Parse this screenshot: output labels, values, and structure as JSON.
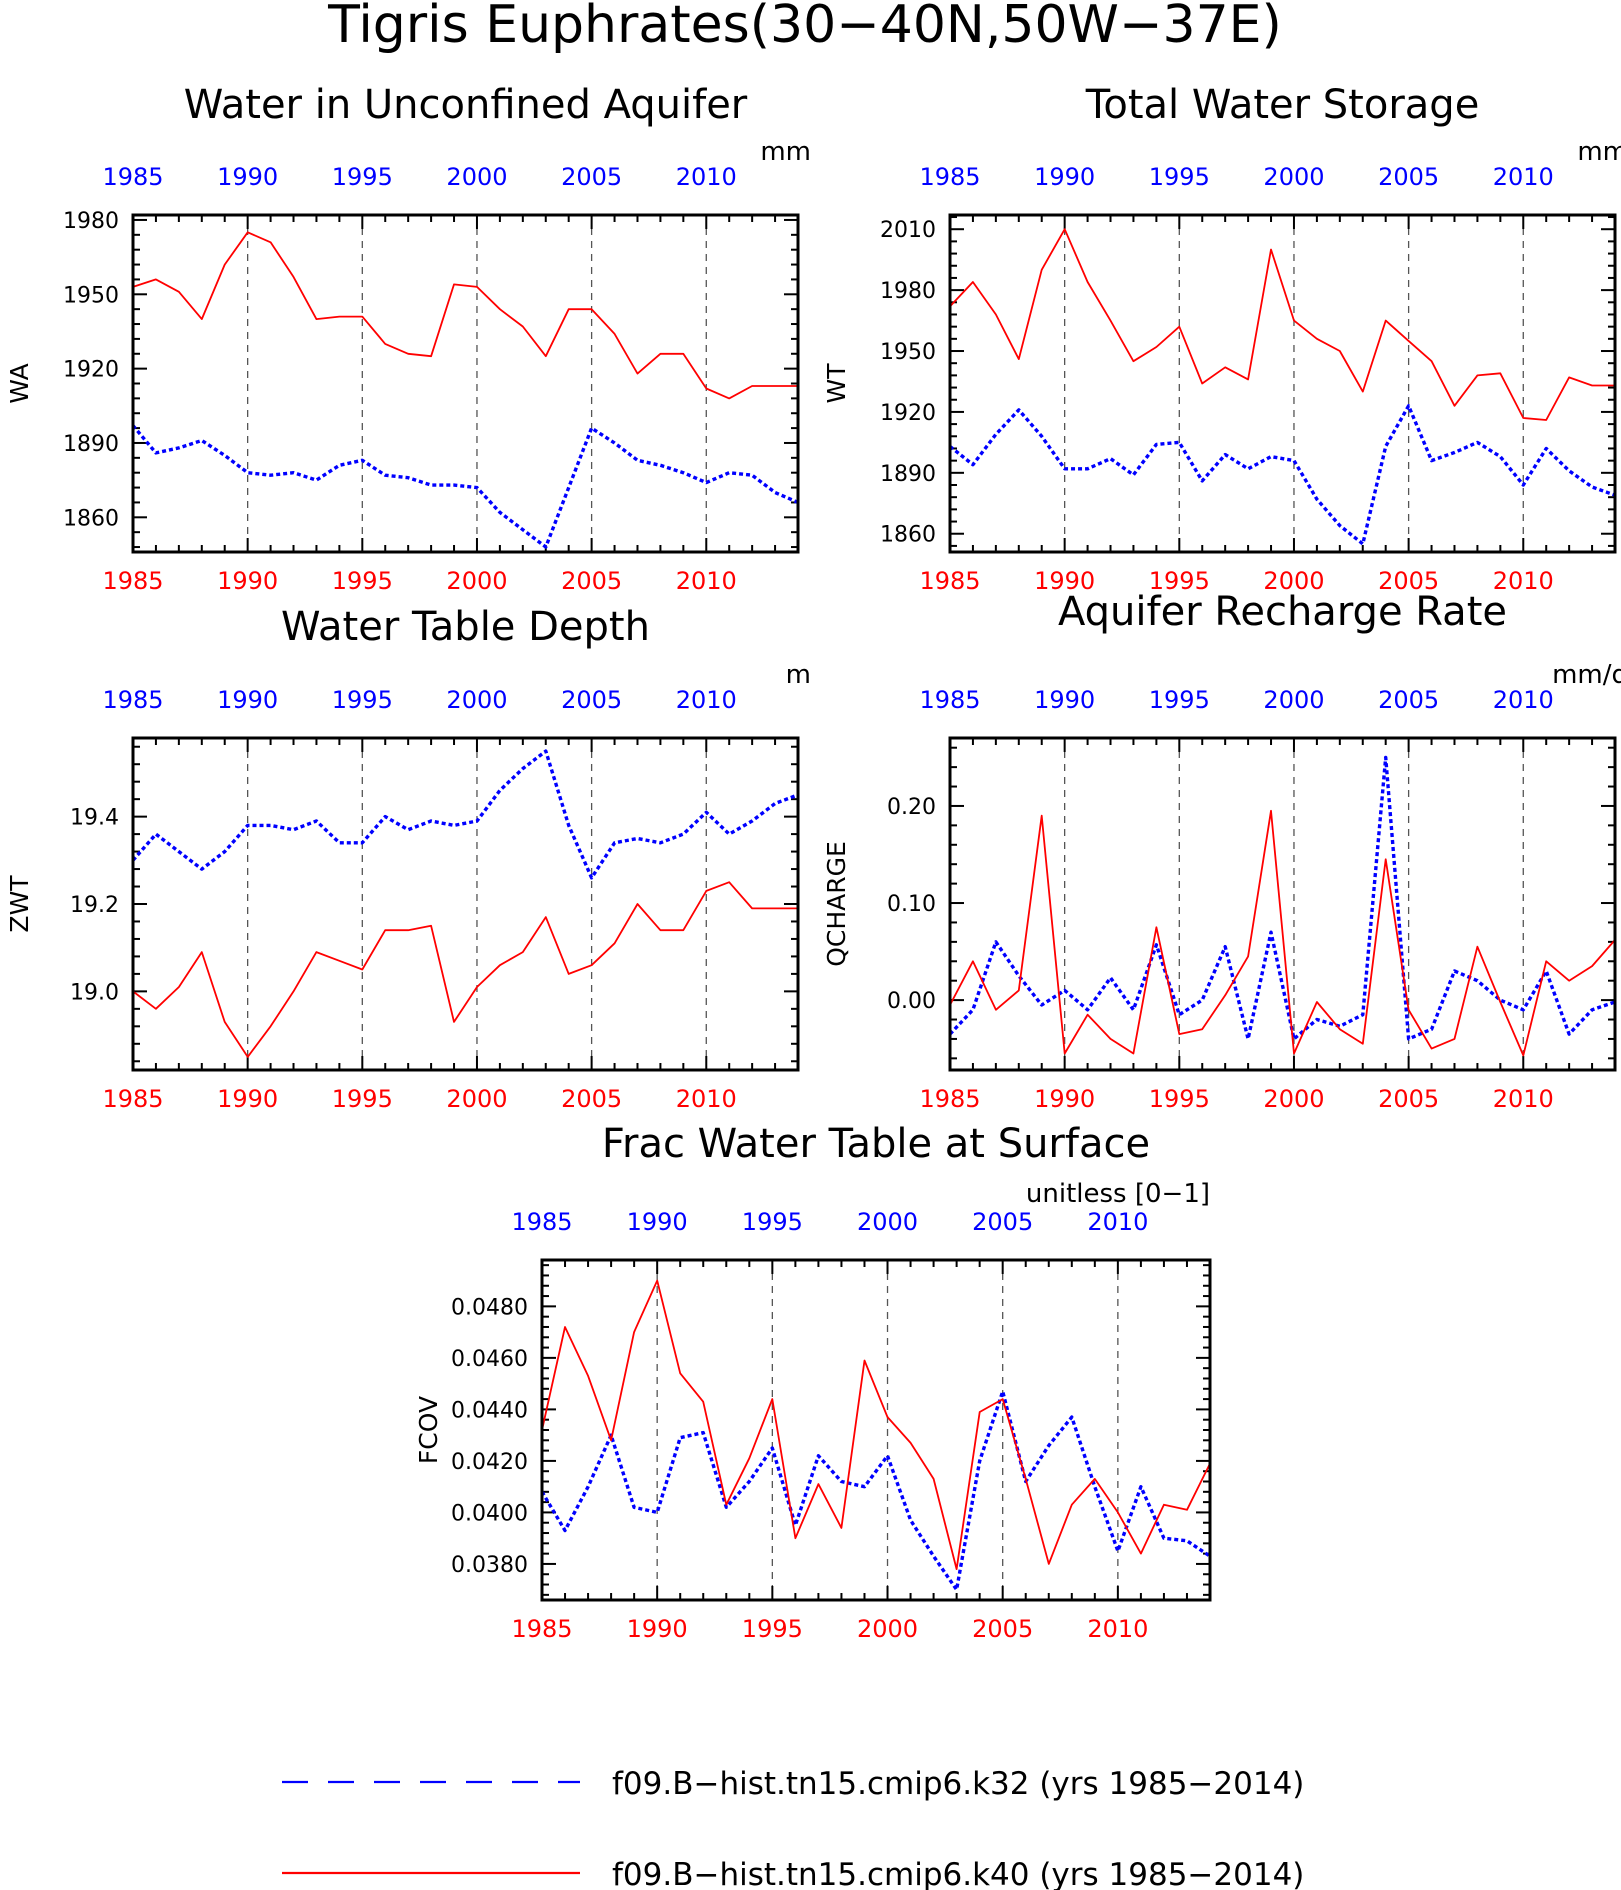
{
  "figure": {
    "title": "Tigris Euphrates(30−40N,50W−37E)"
  },
  "colors": {
    "k32": "#0000ff",
    "k40": "#ff0000",
    "axis": "#000000",
    "grid": "#555555"
  },
  "legend": {
    "placement": "bottom-center",
    "items": [
      {
        "label": "f09.B−hist.tn15.cmip6.k32 (yrs 1985−2014)",
        "color": "#0000ff",
        "style": "dashed"
      },
      {
        "label": "f09.B−hist.tn15.cmip6.k40 (yrs 1985−2014)",
        "color": "#ff0000",
        "style": "solid"
      }
    ]
  },
  "chart_data": [
    {
      "type": "line",
      "title": "Water in Unconfined Aquifer",
      "ylabel": "WA",
      "units": "mm",
      "xlim": [
        1985,
        2014
      ],
      "ylim": [
        1846,
        1982
      ],
      "yticks": [
        1860,
        1890,
        1920,
        1950,
        1980
      ],
      "ytick_labels": [
        "1860",
        "1890",
        "1920",
        "1950",
        "1980"
      ],
      "xticks": [
        1985,
        1990,
        1995,
        2000,
        2005,
        2010
      ],
      "xtick_labels": [
        "1985",
        "1990",
        "1995",
        "2000",
        "2005",
        "2010"
      ],
      "grid_x": true,
      "series": [
        {
          "name": "f09.B−hist.tn15.cmip6.k32 (yrs 1985−2014)",
          "color": "#0000ff",
          "style": "dashed",
          "x": [
            1985,
            1986,
            1987,
            1988,
            1989,
            1990,
            1991,
            1992,
            1993,
            1994,
            1995,
            1996,
            1997,
            1998,
            1999,
            2000,
            2001,
            2002,
            2003,
            2004,
            2005,
            2006,
            2007,
            2008,
            2009,
            2010,
            2011,
            2012,
            2013,
            2014
          ],
          "values": [
            1897,
            1886,
            1888,
            1891,
            1885,
            1878,
            1877,
            1878,
            1875,
            1881,
            1883,
            1877,
            1876,
            1873,
            1873,
            1872,
            1862,
            1855,
            1848,
            1872,
            1896,
            1890,
            1883,
            1881,
            1878,
            1874,
            1878,
            1877,
            1870,
            1866
          ]
        },
        {
          "name": "f09.B−hist.tn15.cmip6.k40 (yrs 1985−2014)",
          "color": "#ff0000",
          "style": "solid",
          "x": [
            1985,
            1986,
            1987,
            1988,
            1989,
            1990,
            1991,
            1992,
            1993,
            1994,
            1995,
            1996,
            1997,
            1998,
            1999,
            2000,
            2001,
            2002,
            2003,
            2004,
            2005,
            2006,
            2007,
            2008,
            2009,
            2010,
            2011,
            2012,
            2013,
            2014
          ],
          "values": [
            1953,
            1956,
            1951,
            1940,
            1962,
            1975,
            1971,
            1957,
            1940,
            1941,
            1941,
            1930,
            1926,
            1925,
            1954,
            1953,
            1944,
            1937,
            1925,
            1944,
            1944,
            1934,
            1918,
            1926,
            1926,
            1912,
            1908,
            1913,
            1913,
            1913
          ]
        }
      ]
    },
    {
      "type": "line",
      "title": "Total Water Storage",
      "ylabel": "WT",
      "units": "mm",
      "xlim": [
        1985,
        2014
      ],
      "ylim": [
        1851,
        2017
      ],
      "yticks": [
        1860,
        1890,
        1920,
        1950,
        1980,
        2010
      ],
      "ytick_labels": [
        "1860",
        "1890",
        "1920",
        "1950",
        "1980",
        "2010"
      ],
      "xticks": [
        1985,
        1990,
        1995,
        2000,
        2005,
        2010
      ],
      "xtick_labels": [
        "1985",
        "1990",
        "1995",
        "2000",
        "2005",
        "2010"
      ],
      "grid_x": true,
      "series": [
        {
          "name": "f09.B−hist.tn15.cmip6.k32 (yrs 1985−2014)",
          "color": "#0000ff",
          "style": "dashed",
          "x": [
            1985,
            1986,
            1987,
            1988,
            1989,
            1990,
            1991,
            1992,
            1993,
            1994,
            1995,
            1996,
            1997,
            1998,
            1999,
            2000,
            2001,
            2002,
            2003,
            2004,
            2005,
            2006,
            2007,
            2008,
            2009,
            2010,
            2011,
            2012,
            2013,
            2014
          ],
          "values": [
            1903,
            1894,
            1909,
            1921,
            1908,
            1892,
            1892,
            1897,
            1889,
            1904,
            1905,
            1886,
            1899,
            1892,
            1898,
            1896,
            1877,
            1864,
            1855,
            1903,
            1923,
            1896,
            1900,
            1905,
            1898,
            1884,
            1902,
            1891,
            1883,
            1879
          ]
        },
        {
          "name": "f09.B−hist.tn15.cmip6.k40 (yrs 1985−2014)",
          "color": "#ff0000",
          "style": "solid",
          "x": [
            1985,
            1986,
            1987,
            1988,
            1989,
            1990,
            1991,
            1992,
            1993,
            1994,
            1995,
            1996,
            1997,
            1998,
            1999,
            2000,
            2001,
            2002,
            2003,
            2004,
            2005,
            2006,
            2007,
            2008,
            2009,
            2010,
            2011,
            2012,
            2013,
            2014
          ],
          "values": [
            1972,
            1984,
            1968,
            1946,
            1990,
            2010,
            1984,
            1965,
            1945,
            1952,
            1962,
            1934,
            1942,
            1936,
            2000,
            1965,
            1956,
            1950,
            1930,
            1965,
            1955,
            1945,
            1923,
            1938,
            1939,
            1917,
            1916,
            1937,
            1933,
            1933
          ]
        }
      ]
    },
    {
      "type": "line",
      "title": "Water Table Depth",
      "ylabel": "ZWT",
      "units": "m",
      "xlim": [
        1985,
        2014
      ],
      "ylim": [
        18.82,
        19.58
      ],
      "yticks": [
        19.0,
        19.2,
        19.4
      ],
      "ytick_labels": [
        "19.0",
        "19.2",
        "19.4"
      ],
      "xticks": [
        1985,
        1990,
        1995,
        2000,
        2005,
        2010
      ],
      "xtick_labels": [
        "1985",
        "1990",
        "1995",
        "2000",
        "2005",
        "2010"
      ],
      "grid_x": true,
      "series": [
        {
          "name": "f09.B−hist.tn15.cmip6.k32 (yrs 1985−2014)",
          "color": "#0000ff",
          "style": "dashed",
          "x": [
            1985,
            1986,
            1987,
            1988,
            1989,
            1990,
            1991,
            1992,
            1993,
            1994,
            1995,
            1996,
            1997,
            1998,
            1999,
            2000,
            2001,
            2002,
            2003,
            2004,
            2005,
            2006,
            2007,
            2008,
            2009,
            2010,
            2011,
            2012,
            2013,
            2014
          ],
          "values": [
            19.3,
            19.36,
            19.32,
            19.28,
            19.32,
            19.38,
            19.38,
            19.37,
            19.39,
            19.34,
            19.34,
            19.4,
            19.37,
            19.39,
            19.38,
            19.39,
            19.46,
            19.51,
            19.55,
            19.38,
            19.26,
            19.34,
            19.35,
            19.34,
            19.36,
            19.41,
            19.36,
            19.39,
            19.43,
            19.45
          ]
        },
        {
          "name": "f09.B−hist.tn15.cmip6.k40 (yrs 1985−2014)",
          "color": "#ff0000",
          "style": "solid",
          "x": [
            1985,
            1986,
            1987,
            1988,
            1989,
            1990,
            1991,
            1992,
            1993,
            1994,
            1995,
            1996,
            1997,
            1998,
            1999,
            2000,
            2001,
            2002,
            2003,
            2004,
            2005,
            2006,
            2007,
            2008,
            2009,
            2010,
            2011,
            2012,
            2013,
            2014
          ],
          "values": [
            19.0,
            18.96,
            19.01,
            19.09,
            18.93,
            18.85,
            18.92,
            19.0,
            19.09,
            19.07,
            19.05,
            19.14,
            19.14,
            19.15,
            18.93,
            19.01,
            19.06,
            19.09,
            19.17,
            19.04,
            19.06,
            19.11,
            19.2,
            19.14,
            19.14,
            19.23,
            19.25,
            19.19,
            19.19,
            19.19
          ]
        }
      ]
    },
    {
      "type": "line",
      "title": "Aquifer Recharge Rate",
      "ylabel": "QCHARGE",
      "units": "mm/d",
      "xlim": [
        1985,
        2014
      ],
      "ylim": [
        -0.072,
        0.27
      ],
      "yticks": [
        0.0,
        0.1,
        0.2
      ],
      "ytick_labels": [
        "0.00",
        "0.10",
        "0.20"
      ],
      "xticks": [
        1985,
        1990,
        1995,
        2000,
        2005,
        2010
      ],
      "xtick_labels": [
        "1985",
        "1990",
        "1995",
        "2000",
        "2005",
        "2010"
      ],
      "grid_x": true,
      "series": [
        {
          "name": "f09.B−hist.tn15.cmip6.k32 (yrs 1985−2014)",
          "color": "#0000ff",
          "style": "dashed",
          "x": [
            1985,
            1986,
            1987,
            1988,
            1989,
            1990,
            1991,
            1992,
            1993,
            1994,
            1995,
            1996,
            1997,
            1998,
            1999,
            2000,
            2001,
            2002,
            2003,
            2004,
            2005,
            2006,
            2007,
            2008,
            2009,
            2010,
            2011,
            2012,
            2013,
            2014
          ],
          "values": [
            -0.035,
            -0.01,
            0.06,
            0.025,
            -0.005,
            0.01,
            -0.01,
            0.023,
            -0.01,
            0.057,
            -0.015,
            0.0,
            0.055,
            -0.04,
            0.07,
            -0.04,
            -0.02,
            -0.027,
            -0.015,
            0.25,
            -0.04,
            -0.03,
            0.03,
            0.02,
            0.0,
            -0.01,
            0.03,
            -0.035,
            -0.01,
            -0.002
          ]
        },
        {
          "name": "f09.B−hist.tn15.cmip6.k40 (yrs 1985−2014)",
          "color": "#ff0000",
          "style": "solid",
          "x": [
            1985,
            1986,
            1987,
            1988,
            1989,
            1990,
            1991,
            1992,
            1993,
            1994,
            1995,
            1996,
            1997,
            1998,
            1999,
            2000,
            2001,
            2002,
            2003,
            2004,
            2005,
            2006,
            2007,
            2008,
            2009,
            2010,
            2011,
            2012,
            2013,
            2014
          ],
          "values": [
            -0.005,
            0.04,
            -0.01,
            0.01,
            0.19,
            -0.055,
            -0.015,
            -0.04,
            -0.055,
            0.075,
            -0.035,
            -0.03,
            0.005,
            0.045,
            0.195,
            -0.055,
            -0.002,
            -0.03,
            -0.045,
            0.145,
            -0.01,
            -0.05,
            -0.04,
            0.055,
            -0.002,
            -0.057,
            0.04,
            0.02,
            0.035,
            0.062
          ]
        }
      ]
    },
    {
      "type": "line",
      "title": "Frac Water Table at Surface",
      "ylabel": "FCOV",
      "units": "unitless [0−1]",
      "xlim": [
        1985,
        2014
      ],
      "ylim": [
        0.0366,
        0.0498
      ],
      "yticks": [
        0.038,
        0.04,
        0.042,
        0.044,
        0.046,
        0.048
      ],
      "ytick_labels": [
        "0.0380",
        "0.0400",
        "0.0420",
        "0.0440",
        "0.0460",
        "0.0480"
      ],
      "xticks": [
        1985,
        1990,
        1995,
        2000,
        2005,
        2010
      ],
      "xtick_labels": [
        "1985",
        "1990",
        "1995",
        "2000",
        "2005",
        "2010"
      ],
      "grid_x": true,
      "series": [
        {
          "name": "f09.B−hist.tn15.cmip6.k32 (yrs 1985−2014)",
          "color": "#0000ff",
          "style": "dashed",
          "x": [
            1985,
            1986,
            1987,
            1988,
            1989,
            1990,
            1991,
            1992,
            1993,
            1994,
            1995,
            1996,
            1997,
            1998,
            1999,
            2000,
            2001,
            2002,
            2003,
            2004,
            2005,
            2006,
            2007,
            2008,
            2009,
            2010,
            2011,
            2012,
            2013,
            2014
          ],
          "values": [
            0.0408,
            0.0393,
            0.041,
            0.043,
            0.0402,
            0.04,
            0.0429,
            0.0431,
            0.0402,
            0.0412,
            0.0425,
            0.0395,
            0.0422,
            0.0412,
            0.041,
            0.0422,
            0.0397,
            0.0383,
            0.037,
            0.042,
            0.0447,
            0.0412,
            0.0426,
            0.0437,
            0.041,
            0.0385,
            0.041,
            0.039,
            0.0389,
            0.0383
          ]
        },
        {
          "name": "f09.B−hist.tn15.cmip6.k40 (yrs 1985−2014)",
          "color": "#ff0000",
          "style": "solid",
          "x": [
            1985,
            1986,
            1987,
            1988,
            1989,
            1990,
            1991,
            1992,
            1993,
            1994,
            1995,
            1996,
            1997,
            1998,
            1999,
            2000,
            2001,
            2002,
            2003,
            2004,
            2005,
            2006,
            2007,
            2008,
            2009,
            2010,
            2011,
            2012,
            2013,
            2014
          ],
          "values": [
            0.0432,
            0.0472,
            0.0453,
            0.0428,
            0.047,
            0.049,
            0.0454,
            0.0443,
            0.0403,
            0.0421,
            0.0444,
            0.039,
            0.0411,
            0.0394,
            0.0459,
            0.0437,
            0.0427,
            0.0413,
            0.0378,
            0.0439,
            0.0444,
            0.0413,
            0.038,
            0.0403,
            0.0413,
            0.04,
            0.0384,
            0.0403,
            0.0401,
            0.0419
          ]
        }
      ]
    }
  ]
}
